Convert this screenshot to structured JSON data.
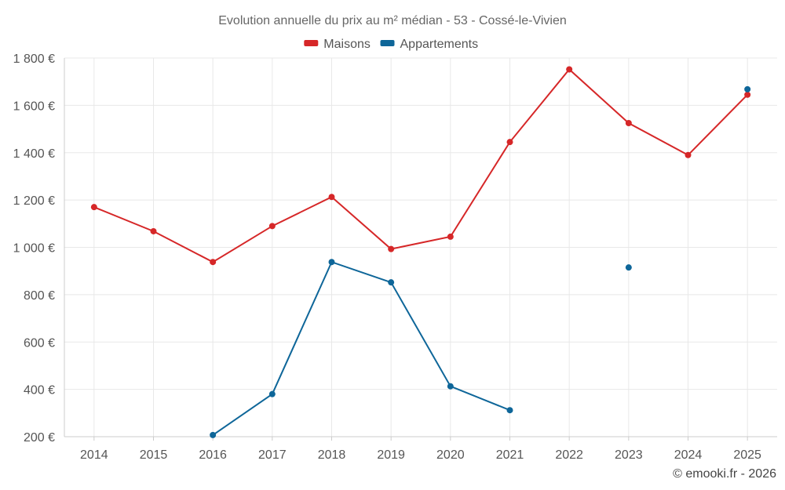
{
  "chart_data": {
    "type": "line",
    "title": "Evolution annuelle du prix au m² médian - 53 - Cossé-le-Vivien",
    "xlabel": "",
    "ylabel": "",
    "categories": [
      "2014",
      "2015",
      "2016",
      "2017",
      "2018",
      "2019",
      "2020",
      "2021",
      "2022",
      "2023",
      "2024",
      "2025"
    ],
    "ylim": [
      200,
      1800
    ],
    "yticks": [
      200,
      400,
      600,
      800,
      1000,
      1200,
      1400,
      1600,
      1800
    ],
    "ytick_labels": [
      "200 €",
      "400 €",
      "600 €",
      "800 €",
      "1 000 €",
      "1 200 €",
      "1 400 €",
      "1 600 €",
      "1 800 €"
    ],
    "grid": true,
    "legend_position": "top-center",
    "series": [
      {
        "name": "Maisons",
        "color": "#d62728",
        "values": [
          1170,
          1068,
          938,
          1090,
          1213,
          993,
          1045,
          1445,
          1752,
          1525,
          1390,
          1645
        ]
      },
      {
        "name": "Appartements",
        "color": "#0e6699",
        "values": [
          null,
          null,
          207,
          380,
          938,
          852,
          413,
          312,
          null,
          915,
          null,
          1668
        ]
      }
    ]
  },
  "credit": "© emooki.fr - 2026"
}
